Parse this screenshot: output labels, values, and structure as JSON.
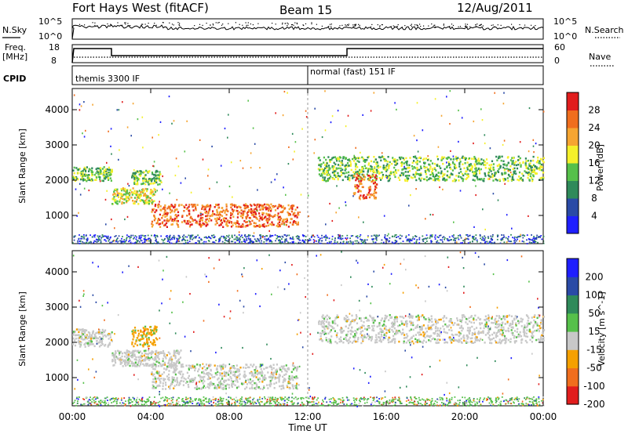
{
  "header": {
    "title": "Fort Hays West (fitACF)",
    "beam": "Beam 15",
    "date": "12/Aug/2011"
  },
  "noise_panel": {
    "left_label": "N.Sky",
    "left_ticks": [
      "10^5",
      "10^0"
    ],
    "right_label": "N.Search",
    "right_ticks": [
      "10^5",
      "10^0"
    ]
  },
  "freq_panel": {
    "left_label_line1": "Freq.",
    "left_label_line2": "[MHz]",
    "left_ticks": [
      "18",
      "8"
    ],
    "right_label": "Nave",
    "right_ticks": [
      "60",
      "0"
    ]
  },
  "cpid_panel": {
    "label": "CPID",
    "segments": [
      {
        "start_hour": 0,
        "text": "themis 3300 IF"
      },
      {
        "start_hour": 12,
        "text": "normal (fast) 151 IF"
      }
    ]
  },
  "x_axis": {
    "label": "Time UT",
    "ticks": [
      "00:00",
      "04:00",
      "08:00",
      "12:00",
      "16:00",
      "20:00",
      "00:00"
    ],
    "tick_hours": [
      0,
      4,
      8,
      12,
      16,
      20,
      24
    ]
  },
  "chart_data": [
    {
      "type": "heatmap",
      "name": "power",
      "ylabel": "Slant Range [km]",
      "yticks": [
        1000,
        2000,
        3000,
        4000
      ],
      "ylim": [
        200,
        4600
      ],
      "xlim_hours": [
        0,
        24
      ],
      "colorbar": {
        "label": "Power [dB]",
        "ticks": [
          "4",
          "8",
          "12",
          "16",
          "20",
          "24",
          "28"
        ],
        "colors": [
          "#1f1fff",
          "#2a4aa6",
          "#2f8a5a",
          "#56c04a",
          "#f5f02a",
          "#f6a531",
          "#f06e1e",
          "#e11d1d"
        ]
      },
      "echo_regions": [
        {
          "t": [
            0.0,
            2.0
          ],
          "range": [
            2000,
            2400
          ],
          "level": 3
        },
        {
          "t": [
            2.0,
            4.2
          ],
          "range": [
            1350,
            1800
          ],
          "level": 4
        },
        {
          "t": [
            3.0,
            4.5
          ],
          "range": [
            1900,
            2300
          ],
          "level": 3
        },
        {
          "t": [
            4.0,
            11.5
          ],
          "range": [
            700,
            1350
          ],
          "level": 6
        },
        {
          "t": [
            12.5,
            24.0
          ],
          "range": [
            2000,
            2700
          ],
          "level": 3
        },
        {
          "t": [
            14.3,
            15.5
          ],
          "range": [
            1500,
            2200
          ],
          "level": 6
        }
      ]
    },
    {
      "type": "heatmap",
      "name": "velocity",
      "ylabel": "Slant Range [km]",
      "yticks": [
        1000,
        2000,
        3000,
        4000
      ],
      "ylim": [
        200,
        4600
      ],
      "xlim_hours": [
        0,
        24
      ],
      "colorbar": {
        "label": "Velocity [m s^-1]",
        "ticks": [
          "200",
          "100",
          "50",
          "15",
          "-15",
          "-50",
          "-100",
          "-200"
        ],
        "colors": [
          "#1f1fff",
          "#2a4aa6",
          "#2f8a5a",
          "#56c04a",
          "#c8c8c8",
          "#f5a000",
          "#f06e1e",
          "#e11d1d"
        ]
      },
      "echo_regions": [
        {
          "t": [
            0.0,
            2.0
          ],
          "range": [
            1900,
            2400
          ],
          "color": "ground"
        },
        {
          "t": [
            2.0,
            5.5
          ],
          "range": [
            1350,
            1800
          ],
          "color": "ground"
        },
        {
          "t": [
            3.0,
            4.3
          ],
          "range": [
            1900,
            2500
          ],
          "color": "orange"
        },
        {
          "t": [
            4.0,
            11.5
          ],
          "range": [
            700,
            1400
          ],
          "color": "ground"
        },
        {
          "t": [
            12.5,
            24.0
          ],
          "range": [
            2000,
            2800
          ],
          "color": "ground"
        }
      ]
    }
  ]
}
